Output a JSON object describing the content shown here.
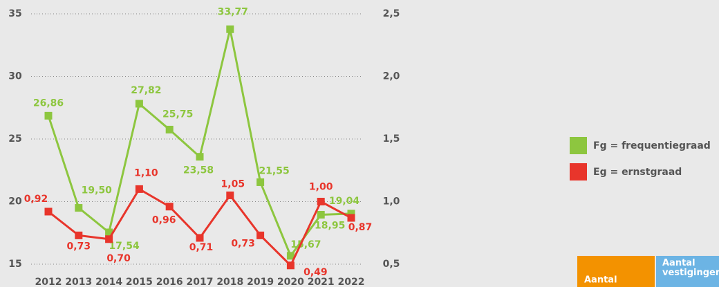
{
  "chart_data": {
    "type": "line",
    "categories": [
      "2012",
      "2013",
      "2014",
      "2015",
      "2016",
      "2017",
      "2018",
      "2019",
      "2020",
      "2021",
      "2022"
    ],
    "series": [
      {
        "name": "Fg = frequentiegraad",
        "color": "#8dc63f",
        "values": [
          26.86,
          19.5,
          17.54,
          27.82,
          25.75,
          23.58,
          33.77,
          21.55,
          15.67,
          18.95,
          19.04
        ],
        "value_labels": [
          "26,86",
          "19,50",
          "17,54",
          "27,82",
          "25,75",
          "23,58",
          "33,77",
          "21,55",
          "15,67",
          "18,95",
          "19,04"
        ]
      },
      {
        "name": "Eg = ernstgraad",
        "color": "#e8352b",
        "axis": "y2",
        "values": [
          0.92,
          0.73,
          0.7,
          1.1,
          0.96,
          0.71,
          1.05,
          0.73,
          0.49,
          1.0,
          0.87
        ],
        "value_labels": [
          "0,92",
          "0,73",
          "0,70",
          "1,10",
          "0,96",
          "0,71",
          "1,05",
          "0,73",
          "0,49",
          "1,00",
          "0,87"
        ]
      }
    ],
    "ylim": [
      15,
      35
    ],
    "yticks": [
      15,
      20,
      25,
      30,
      35
    ],
    "y2lim": [
      0.5,
      2.5
    ],
    "y2ticks": [
      {
        "value": 0.5,
        "label": "0,5"
      },
      {
        "value": 1.0,
        "label": "1,0"
      },
      {
        "value": 1.5,
        "label": "1,5"
      },
      {
        "value": 2.0,
        "label": "2,0"
      },
      {
        "value": 2.5,
        "label": "2,5"
      }
    ],
    "grid": true
  },
  "table": {
    "headers": [
      "Aantal",
      "Aantal vestigingen"
    ]
  }
}
